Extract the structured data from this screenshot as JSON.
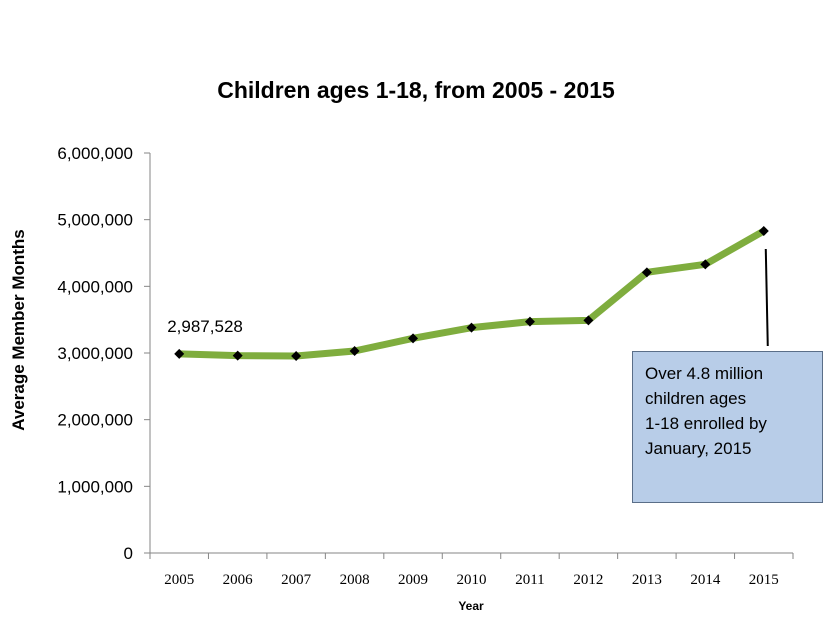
{
  "chart_data": {
    "type": "line",
    "title": "Children ages 1-18, from 2005 - 2015",
    "xlabel": "Year",
    "ylabel": "Average Member Months",
    "categories": [
      "2005",
      "2006",
      "2007",
      "2008",
      "2009",
      "2010",
      "2011",
      "2012",
      "2013",
      "2014",
      "2015"
    ],
    "series": [
      {
        "values": [
          2987528,
          2960000,
          2955000,
          3030000,
          3220000,
          3380000,
          3470000,
          3490000,
          4210000,
          4330000,
          4830000
        ]
      }
    ],
    "yticks": [
      "0",
      "1,000,000",
      "2,000,000",
      "3,000,000",
      "4,000,000",
      "5,000,000",
      "6,000,000"
    ],
    "ylim": [
      0,
      6000000
    ],
    "grid": false,
    "line_color": "#7fad3e",
    "marker_color": "#000000",
    "data_label": {
      "category": "2005",
      "text": "2,987,528"
    },
    "annotation": {
      "category": "2015",
      "lines": [
        "Over 4.8 million",
        "children ages",
        "1-18 enrolled by",
        "January, 2015"
      ],
      "fill": "#b8cde8"
    }
  }
}
